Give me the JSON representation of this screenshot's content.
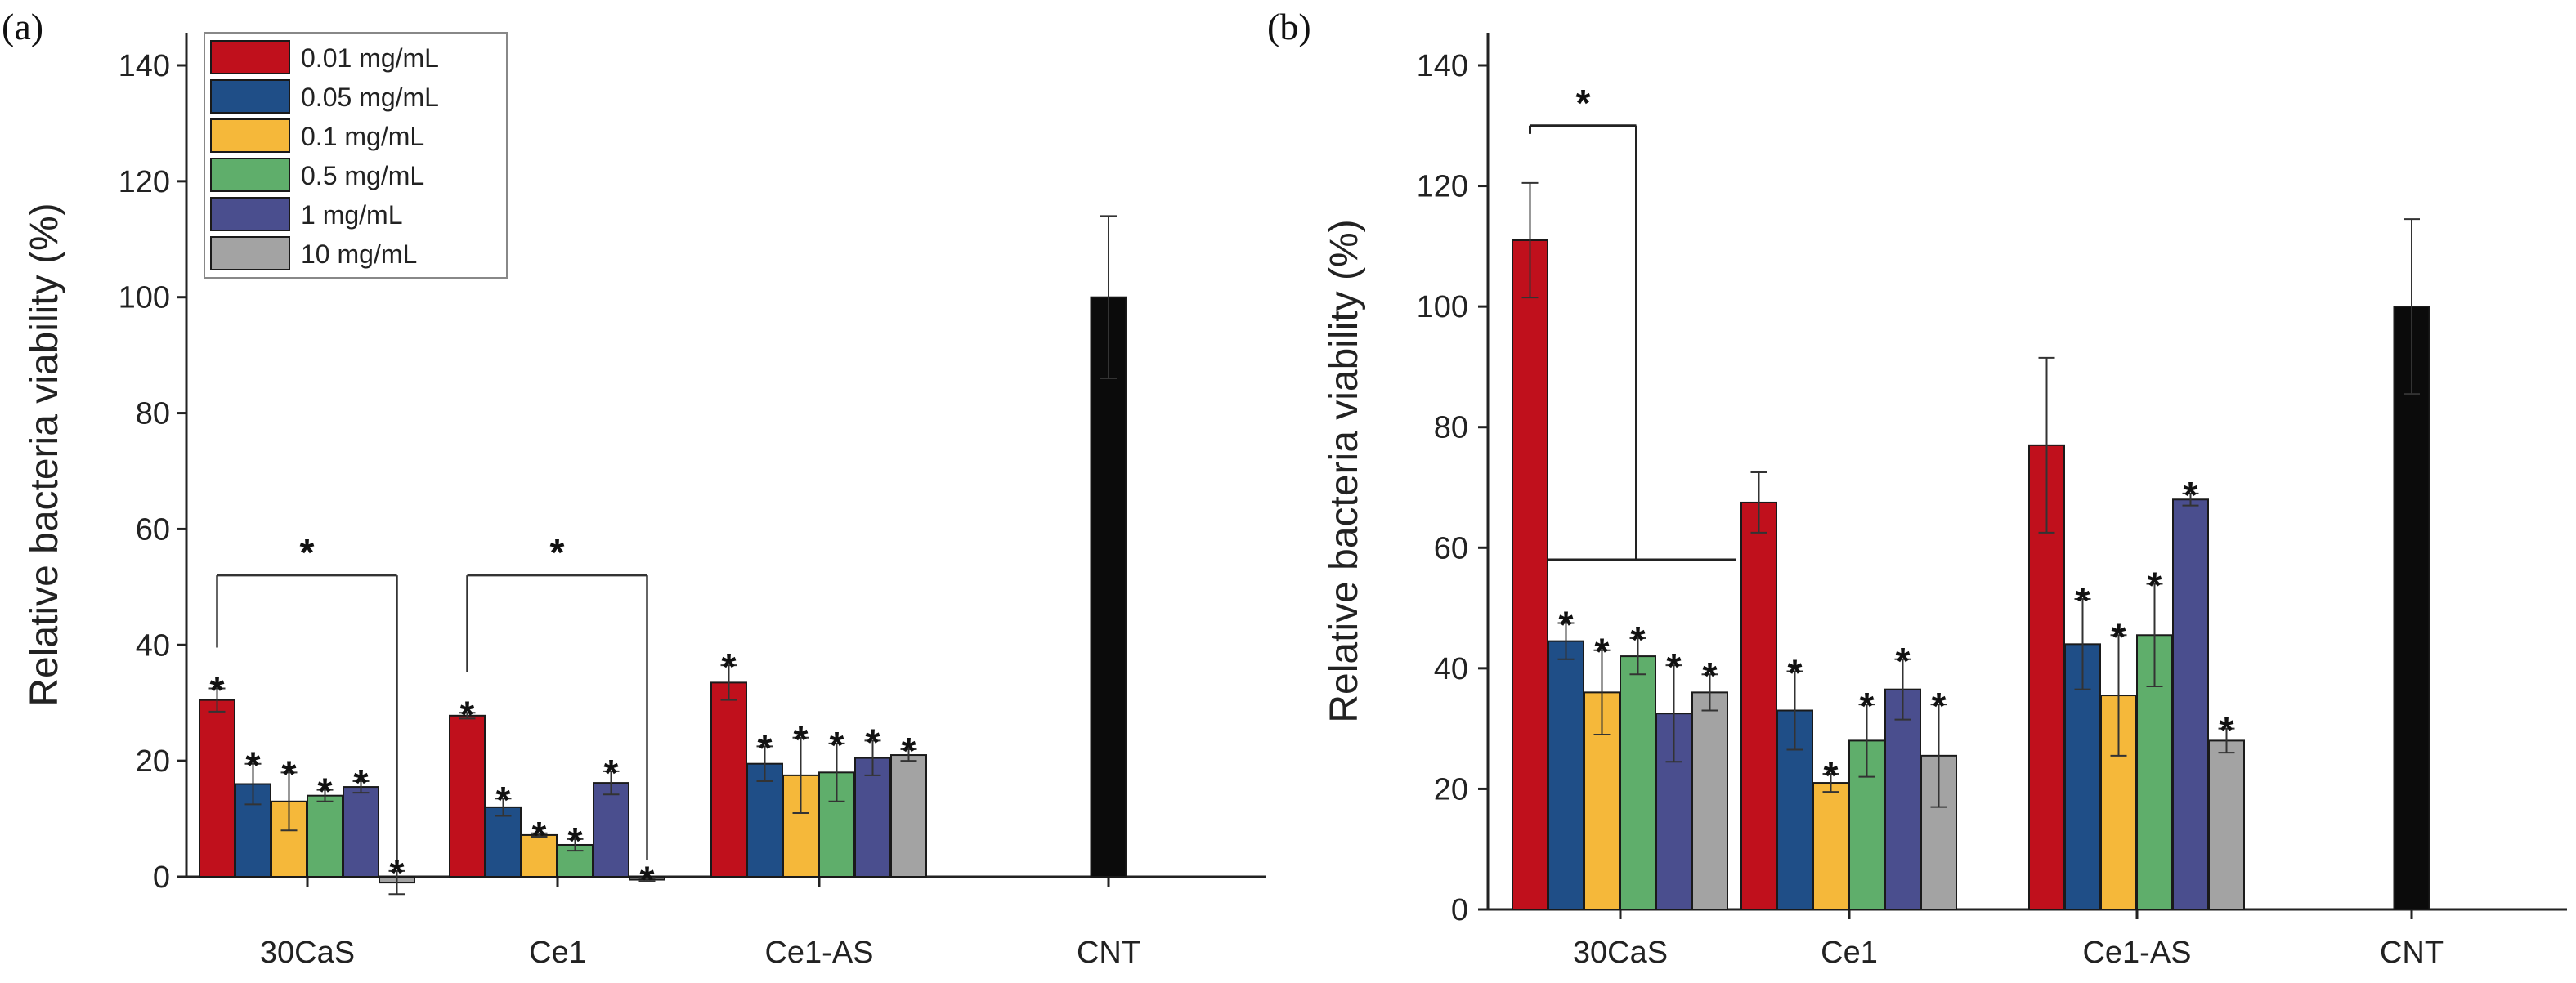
{
  "chart_data": [
    {
      "panel": "(a)",
      "type": "bar",
      "ylabel": "Relative bacteria viability (%)",
      "ylim": [
        -5,
        140
      ],
      "yticks": [
        "0",
        "20",
        "40",
        "60",
        "80",
        "100",
        "120",
        "140"
      ],
      "categories": [
        "30CaS",
        "Ce1",
        "Ce1-AS",
        "CNT"
      ],
      "legend_position": "top-left",
      "series": [
        {
          "name": "0.01 mg/mL",
          "color": "#c0101c",
          "values": [
            30.5,
            27.8,
            33.5,
            null
          ],
          "errors": [
            2,
            0.5,
            3,
            null
          ],
          "sig": [
            true,
            true,
            true,
            false
          ]
        },
        {
          "name": "0.05 mg/mL",
          "color": "#1f4e87",
          "values": [
            16,
            12,
            19.5,
            null
          ],
          "errors": [
            3.5,
            1.5,
            3,
            null
          ],
          "sig": [
            true,
            true,
            true,
            false
          ]
        },
        {
          "name": "0.1 mg/mL",
          "color": "#f5b83a",
          "values": [
            13,
            7.2,
            17.5,
            null
          ],
          "errors": [
            5,
            0.3,
            6.5,
            null
          ],
          "sig": [
            true,
            true,
            true,
            false
          ]
        },
        {
          "name": "0.5 mg/mL",
          "color": "#5fae6b",
          "values": [
            14,
            5.5,
            18,
            null
          ],
          "errors": [
            1,
            1,
            5,
            null
          ],
          "sig": [
            true,
            true,
            true,
            false
          ]
        },
        {
          "name": "1 mg/mL",
          "color": "#4a4e8e",
          "values": [
            15.5,
            16.2,
            20.5,
            null
          ],
          "errors": [
            1,
            2,
            3,
            null
          ],
          "sig": [
            true,
            true,
            true,
            false
          ]
        },
        {
          "name": "10 mg/mL",
          "color": "#a3a3a3",
          "values": [
            -1,
            -0.5,
            21,
            null
          ],
          "errors": [
            2,
            0.3,
            1,
            null
          ],
          "sig": [
            true,
            true,
            true,
            false
          ]
        },
        {
          "name": "",
          "color": "#0b0b0b",
          "values": [
            null,
            null,
            null,
            100
          ],
          "errors": [
            null,
            null,
            null,
            14
          ],
          "sig": [
            false,
            false,
            false,
            false
          ]
        }
      ],
      "brackets": [
        {
          "category": "30CaS",
          "from_series": 0,
          "to_series": 5,
          "label": "*"
        },
        {
          "category": "Ce1",
          "from_series": 0,
          "to_series": 5,
          "label": "*"
        }
      ]
    },
    {
      "panel": "(b)",
      "type": "bar",
      "ylabel": "Relative bacteria viability (%)",
      "ylim": [
        0,
        140
      ],
      "yticks": [
        "0",
        "20",
        "40",
        "60",
        "80",
        "100",
        "120",
        "140"
      ],
      "categories": [
        "30CaS",
        "Ce1",
        "Ce1-AS",
        "CNT"
      ],
      "series": [
        {
          "name": "0.01 mg/mL",
          "color": "#c0101c",
          "values": [
            111,
            67.5,
            77,
            null
          ],
          "errors": [
            9.5,
            5,
            14.5,
            null
          ],
          "sig": [
            false,
            false,
            false,
            false
          ]
        },
        {
          "name": "0.05 mg/mL",
          "color": "#1f4e87",
          "values": [
            44.5,
            33,
            44,
            null
          ],
          "errors": [
            3,
            6.5,
            7.5,
            null
          ],
          "sig": [
            true,
            true,
            true,
            false
          ]
        },
        {
          "name": "0.1 mg/mL",
          "color": "#f5b83a",
          "values": [
            36,
            21,
            35.5,
            null
          ],
          "errors": [
            7,
            1.5,
            10,
            null
          ],
          "sig": [
            true,
            true,
            true,
            false
          ]
        },
        {
          "name": "0.5 mg/mL",
          "color": "#5fae6b",
          "values": [
            42,
            28,
            45.5,
            null
          ],
          "errors": [
            3,
            6,
            8.5,
            null
          ],
          "sig": [
            true,
            true,
            true,
            false
          ]
        },
        {
          "name": "1 mg/mL",
          "color": "#4a4e8e",
          "values": [
            32.5,
            36.5,
            68,
            null
          ],
          "errors": [
            8,
            5,
            1,
            null
          ],
          "sig": [
            true,
            true,
            true,
            false
          ]
        },
        {
          "name": "10 mg/mL",
          "color": "#a3a3a3",
          "values": [
            36,
            25.5,
            28,
            null
          ],
          "errors": [
            3,
            8.5,
            2,
            null
          ],
          "sig": [
            true,
            true,
            true,
            false
          ]
        },
        {
          "name": "",
          "color": "#0b0b0b",
          "values": [
            null,
            null,
            null,
            100
          ],
          "errors": [
            null,
            null,
            null,
            14.5
          ],
          "sig": [
            false,
            false,
            false,
            false
          ]
        }
      ],
      "brackets": [
        {
          "category": "30CaS",
          "from_series": 0,
          "to_series": 5,
          "label": "*",
          "style": "group"
        }
      ]
    }
  ]
}
